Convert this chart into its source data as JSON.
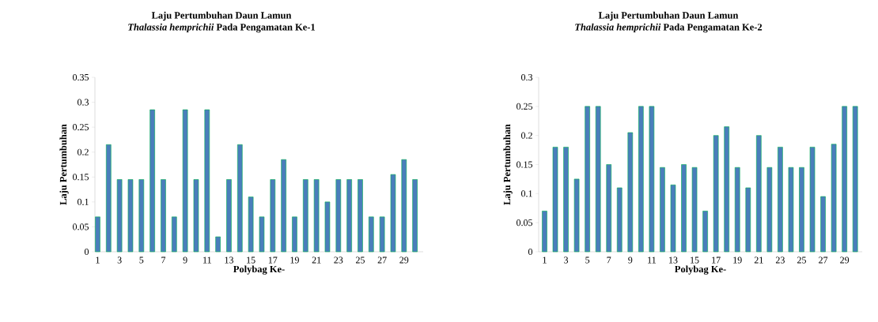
{
  "chart_data": [
    {
      "type": "bar",
      "title": "Laju Pertumbuhan Daun Lamun",
      "subtitle": "*Thalassia hemprichii*  Pada Pengamatan Ke-1",
      "xlabel": "Polybag Ke-",
      "ylabel": "Laju Pertumbuhan",
      "categories": [
        "1",
        null,
        "3",
        null,
        "5",
        null,
        "7",
        null,
        "9",
        null,
        "11",
        null,
        "13",
        null,
        "15",
        null,
        "17",
        null,
        "19",
        null,
        "21",
        null,
        "23",
        null,
        "25",
        null,
        "27",
        null,
        "29",
        null
      ],
      "values": [
        0.07,
        0.215,
        0.145,
        0.145,
        0.145,
        0.285,
        0.145,
        0.07,
        0.285,
        0.145,
        0.285,
        0.03,
        0.145,
        0.215,
        0.11,
        0.07,
        0.145,
        0.185,
        0.07,
        0.145,
        0.145,
        0.1,
        0.145,
        0.145,
        0.145,
        0.07,
        0.07,
        0.155,
        0.185,
        0.145
      ],
      "color": "#4a7ebb",
      "ylim": [
        0,
        0.35
      ],
      "yticks": [
        0,
        0.05,
        0.1,
        0.15,
        0.2,
        0.25,
        0.3,
        0.35
      ]
    },
    {
      "type": "bar",
      "title": "Laju Pertumbuhan Daun Lamun",
      "subtitle": "*Thalassia hemprichii*  Pada Pengamatan Ke-2",
      "xlabel": "Polybag Ke-",
      "ylabel": "Laju Pertumbuhan",
      "categories": [
        "1",
        null,
        "3",
        null,
        "5",
        null,
        "7",
        null,
        "9",
        null,
        "11",
        null,
        "13",
        null,
        "15",
        null,
        "17",
        null,
        "19",
        null,
        "21",
        null,
        "23",
        null,
        "25",
        null,
        "27",
        null,
        "29",
        null
      ],
      "values": [
        0.07,
        0.18,
        0.18,
        0.125,
        0.25,
        0.25,
        0.15,
        0.11,
        0.205,
        0.25,
        0.25,
        0.145,
        0.115,
        0.15,
        0.145,
        0.07,
        0.2,
        0.215,
        0.145,
        0.11,
        0.2,
        0.145,
        0.18,
        0.145,
        0.145,
        0.18,
        0.095,
        0.185,
        0.25,
        0.25
      ],
      "color": "#4a7ebb",
      "ylim": [
        0,
        0.3
      ],
      "yticks": [
        0,
        0.05,
        0.1,
        0.15,
        0.2,
        0.25,
        0.3
      ]
    }
  ]
}
